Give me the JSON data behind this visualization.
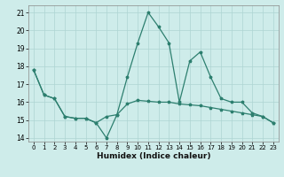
{
  "xlabel": "Humidex (Indice chaleur)",
  "x": [
    0,
    1,
    2,
    3,
    4,
    5,
    6,
    7,
    8,
    9,
    10,
    11,
    12,
    13,
    14,
    15,
    16,
    17,
    18,
    19,
    20,
    21,
    22,
    23
  ],
  "line1_y": [
    17.8,
    16.4,
    16.2,
    15.2,
    15.1,
    15.1,
    14.85,
    15.2,
    15.3,
    15.9,
    16.1,
    16.05,
    16.0,
    16.0,
    15.9,
    15.85,
    15.8,
    15.7,
    15.6,
    15.5,
    15.4,
    15.3,
    15.2,
    14.85
  ],
  "line2_y": [
    17.8,
    16.4,
    16.2,
    15.2,
    15.1,
    15.1,
    14.85,
    14.0,
    15.3,
    17.4,
    19.3,
    21.0,
    20.2,
    19.3,
    16.0,
    18.3,
    18.8,
    17.4,
    16.2,
    16.0,
    16.0,
    15.4,
    15.2,
    14.85
  ],
  "line_color": "#2d7f6f",
  "bg_color": "#ceecea",
  "grid_color": "#aed4d2",
  "ylim": [
    13.8,
    21.4
  ],
  "yticks": [
    14,
    15,
    16,
    17,
    18,
    19,
    20,
    21
  ],
  "xlim": [
    -0.5,
    23.5
  ],
  "xticks": [
    0,
    1,
    2,
    3,
    4,
    5,
    6,
    7,
    8,
    9,
    10,
    11,
    12,
    13,
    14,
    15,
    16,
    17,
    18,
    19,
    20,
    21,
    22,
    23
  ]
}
